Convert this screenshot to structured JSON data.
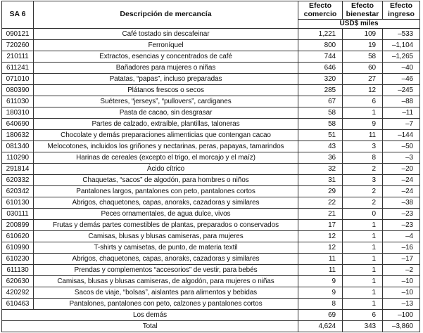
{
  "header": {
    "col_sa6": "SA 6",
    "col_description": "Descripción de mercancía",
    "col_trade": "Efecto comercio",
    "col_welfare": "Efecto bienestar",
    "col_income": "Efecto ingreso",
    "units": "USD$ miles"
  },
  "rows": [
    {
      "code": "090121",
      "description": "Café tostado sin descafeinar",
      "trade": "1,221",
      "welfare": "109",
      "income": "–533"
    },
    {
      "code": "720260",
      "description": "Ferroníquel",
      "trade": "800",
      "welfare": "19",
      "income": "–1,104"
    },
    {
      "code": "210111",
      "description": "Extractos, esencias y concentrados de café",
      "trade": "744",
      "welfare": "58",
      "income": "–1,265"
    },
    {
      "code": "611241",
      "description": "Bañadores para mujeres o niñas",
      "trade": "646",
      "welfare": "60",
      "income": "–40"
    },
    {
      "code": "071010",
      "description": "Patatas, “papas”, incluso preparadas",
      "trade": "320",
      "welfare": "27",
      "income": "–46"
    },
    {
      "code": "080390",
      "description": "Plátanos frescos o secos",
      "trade": "285",
      "welfare": "12",
      "income": "–245"
    },
    {
      "code": "611030",
      "description": "Suéteres, “jerseys”, “pullovers”, cardiganes",
      "trade": "67",
      "welfare": "6",
      "income": "–88"
    },
    {
      "code": "180310",
      "description": "Pasta de cacao, sin desgrasar",
      "trade": "58",
      "welfare": "1",
      "income": "–11"
    },
    {
      "code": "640690",
      "description": "Partes de calzado, extraíble, plantillas, taloneras",
      "trade": "58",
      "welfare": "9",
      "income": "–7"
    },
    {
      "code": "180632",
      "description": "Chocolate y demás preparaciones alimenticias que contengan cacao",
      "trade": "51",
      "welfare": "11",
      "income": "–144"
    },
    {
      "code": "081340",
      "description": "Melocotones, incluidos los griñones y nectarinas, peras, papayas, tamarindos",
      "trade": "43",
      "welfare": "3",
      "income": "–50"
    },
    {
      "code": "110290",
      "description": "Harinas de cereales (excepto el trigo, el morcajo y el maíz)",
      "trade": "36",
      "welfare": "8",
      "income": "–3"
    },
    {
      "code": "291814",
      "description": "Ácido cítrico",
      "trade": "32",
      "welfare": "2",
      "income": "–20"
    },
    {
      "code": "620332",
      "description": "Chaquetas, “sacos” de algodón, para hombres o niños",
      "trade": "31",
      "welfare": "3",
      "income": "–24"
    },
    {
      "code": "620342",
      "description": "Pantalones largos, pantalones con peto, pantalones cortos",
      "trade": "29",
      "welfare": "2",
      "income": "–24"
    },
    {
      "code": "610130",
      "description": "Abrigos, chaquetones, capas, anoraks, cazadoras y similares",
      "trade": "22",
      "welfare": "2",
      "income": "–38"
    },
    {
      "code": "030111",
      "description": "Peces ornamentales, de agua dulce, vivos",
      "trade": "21",
      "welfare": "0",
      "income": "–23"
    },
    {
      "code": "200899",
      "description": "Frutas y demás partes comestibles de plantas, preparados o conservados",
      "trade": "17",
      "welfare": "1",
      "income": "–23"
    },
    {
      "code": "610620",
      "description": "Camisas, blusas y blusas camiseras, para mujeres",
      "trade": "12",
      "welfare": "1",
      "income": "–4"
    },
    {
      "code": "610990",
      "description": "T-shirts y camisetas, de punto, de materia textil",
      "trade": "12",
      "welfare": "1",
      "income": "–16"
    },
    {
      "code": "610230",
      "description": "Abrigos, chaquetones, capas, anoraks, cazadoras y similares",
      "trade": "11",
      "welfare": "1",
      "income": "–17"
    },
    {
      "code": "611130",
      "description": "Prendas y complementos “accesorios” de vestir, para bebés",
      "trade": "11",
      "welfare": "1",
      "income": "–2"
    },
    {
      "code": "620630",
      "description": "Camisas, blusas y blusas camiseras, de algodón, para mujeres o niñas",
      "trade": "9",
      "welfare": "1",
      "income": "–10"
    },
    {
      "code": "420292",
      "description": "Sacos de viaje, “bolsas”, aislantes para alimentos y bebidas",
      "trade": "9",
      "welfare": "1",
      "income": "–10"
    },
    {
      "code": "610463",
      "description": "Pantalones, pantalones con peto, calzones y pantalones cortos",
      "trade": "8",
      "welfare": "1",
      "income": "–13"
    }
  ],
  "summary_rows": [
    {
      "label": "Los demás",
      "trade": "69",
      "welfare": "6",
      "income": "–100"
    },
    {
      "label": "Total",
      "trade": "4,624",
      "welfare": "343",
      "income": "–3,860"
    }
  ]
}
